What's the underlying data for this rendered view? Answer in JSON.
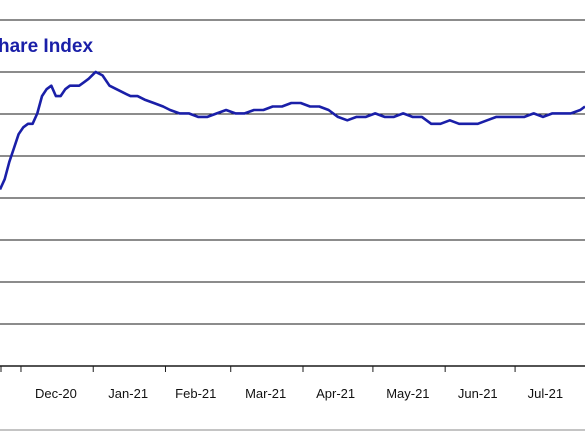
{
  "colors": {
    "line": "#1a1fa8",
    "title": "#1a1fa8",
    "grid": "#1a1a1a",
    "background": "#ffffff"
  },
  "chart_data": {
    "type": "line",
    "title": "hare Index",
    "xlabel": "",
    "ylabel": "",
    "grid": true,
    "legend": "none",
    "x_tick_labels": [
      "Dec-20",
      "Jan-21",
      "Feb-21",
      "Mar-21",
      "Apr-21",
      "May-21",
      "Jun-21",
      "Jul-21"
    ],
    "x_range": [
      "2020-11-22",
      "2021-07-31"
    ],
    "y_range": [
      0,
      10
    ],
    "series": [
      {
        "x": [
          "2020-11-22",
          "2020-11-24",
          "2020-11-26",
          "2020-11-28",
          "2020-11-30",
          "2020-12-02",
          "2020-12-04",
          "2020-12-06",
          "2020-12-08",
          "2020-12-10",
          "2020-12-12",
          "2020-12-14",
          "2020-12-16",
          "2020-12-18",
          "2020-12-20",
          "2020-12-22",
          "2020-12-24",
          "2020-12-26",
          "2020-12-28",
          "2020-12-30",
          "2021-01-02",
          "2021-01-05",
          "2021-01-08",
          "2021-01-11",
          "2021-01-14",
          "2021-01-17",
          "2021-01-20",
          "2021-01-23",
          "2021-01-27",
          "2021-01-31",
          "2021-02-03",
          "2021-02-07",
          "2021-02-11",
          "2021-02-15",
          "2021-02-19",
          "2021-02-23",
          "2021-02-27",
          "2021-03-03",
          "2021-03-07",
          "2021-03-11",
          "2021-03-15",
          "2021-03-19",
          "2021-03-23",
          "2021-03-27",
          "2021-03-31",
          "2021-04-04",
          "2021-04-08",
          "2021-04-12",
          "2021-04-16",
          "2021-04-20",
          "2021-04-24",
          "2021-04-28",
          "2021-05-02",
          "2021-05-06",
          "2021-05-10",
          "2021-05-14",
          "2021-05-18",
          "2021-05-22",
          "2021-05-26",
          "2021-05-30",
          "2021-06-03",
          "2021-06-07",
          "2021-06-11",
          "2021-06-15",
          "2021-06-19",
          "2021-06-23",
          "2021-06-27",
          "2021-07-01",
          "2021-07-05",
          "2021-07-09",
          "2021-07-13",
          "2021-07-17",
          "2021-07-21",
          "2021-07-25",
          "2021-07-29",
          "2021-07-31"
        ],
        "y": [
          5.1,
          5.4,
          5.9,
          6.3,
          6.7,
          6.9,
          7.0,
          7.0,
          7.3,
          7.8,
          8.0,
          8.1,
          7.8,
          7.8,
          8.0,
          8.1,
          8.1,
          8.1,
          8.2,
          8.3,
          8.5,
          8.4,
          8.1,
          8.0,
          7.9,
          7.8,
          7.8,
          7.7,
          7.6,
          7.5,
          7.4,
          7.3,
          7.3,
          7.2,
          7.2,
          7.3,
          7.4,
          7.3,
          7.3,
          7.4,
          7.4,
          7.5,
          7.5,
          7.6,
          7.6,
          7.5,
          7.5,
          7.4,
          7.2,
          7.1,
          7.2,
          7.2,
          7.3,
          7.2,
          7.2,
          7.3,
          7.2,
          7.2,
          7.0,
          7.0,
          7.1,
          7.0,
          7.0,
          7.0,
          7.1,
          7.2,
          7.2,
          7.2,
          7.2,
          7.3,
          7.2,
          7.3,
          7.3,
          7.3,
          7.4,
          7.5
        ]
      }
    ]
  }
}
